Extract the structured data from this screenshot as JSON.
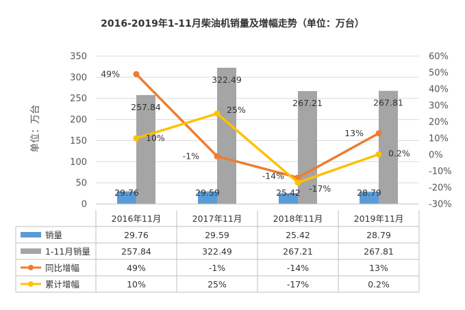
{
  "chart_data": {
    "type": "bar+line",
    "title": "2016-2019年1-11月柴油机销量及增幅走势（单位：万台）",
    "ylabel": "单位：万台",
    "categories": [
      "2016年11月",
      "2017年11月",
      "2018年11月",
      "2019年11月"
    ],
    "ylim": [
      0,
      350
    ],
    "y_ticks": [
      "0",
      "50",
      "100",
      "150",
      "200",
      "250",
      "300",
      "350"
    ],
    "y2lim": [
      -30,
      60
    ],
    "y2_ticks": [
      "-30%",
      "-20%",
      "-10%",
      "0%",
      "10%",
      "20%",
      "30%",
      "40%",
      "50%",
      "60%"
    ],
    "grid": true,
    "legend": "data-table",
    "series": [
      {
        "name": "销量",
        "kind": "bar",
        "axis": "left",
        "color": "#5b9bd5",
        "values": [
          29.76,
          29.59,
          25.42,
          28.79
        ],
        "labels": [
          "29.76",
          "29.59",
          "25.42",
          "28.79"
        ]
      },
      {
        "name": "1-11月销量",
        "kind": "bar",
        "axis": "left",
        "color": "#a5a5a5",
        "values": [
          257.84,
          322.49,
          267.21,
          267.81
        ],
        "labels": [
          "257.84",
          "322.49",
          "267.21",
          "267.81"
        ]
      },
      {
        "name": "同比增幅",
        "kind": "line",
        "axis": "right",
        "color": "#ed7d31",
        "values": [
          49,
          -1,
          -14,
          13
        ],
        "labels": [
          "49%",
          "-1%",
          "-14%",
          "13%"
        ]
      },
      {
        "name": "累计增幅",
        "kind": "line",
        "axis": "right",
        "color": "#ffc000",
        "values": [
          10,
          25,
          -17,
          0.2
        ],
        "labels": [
          "10%",
          "25%",
          "-17%",
          "0.2%"
        ]
      }
    ]
  }
}
